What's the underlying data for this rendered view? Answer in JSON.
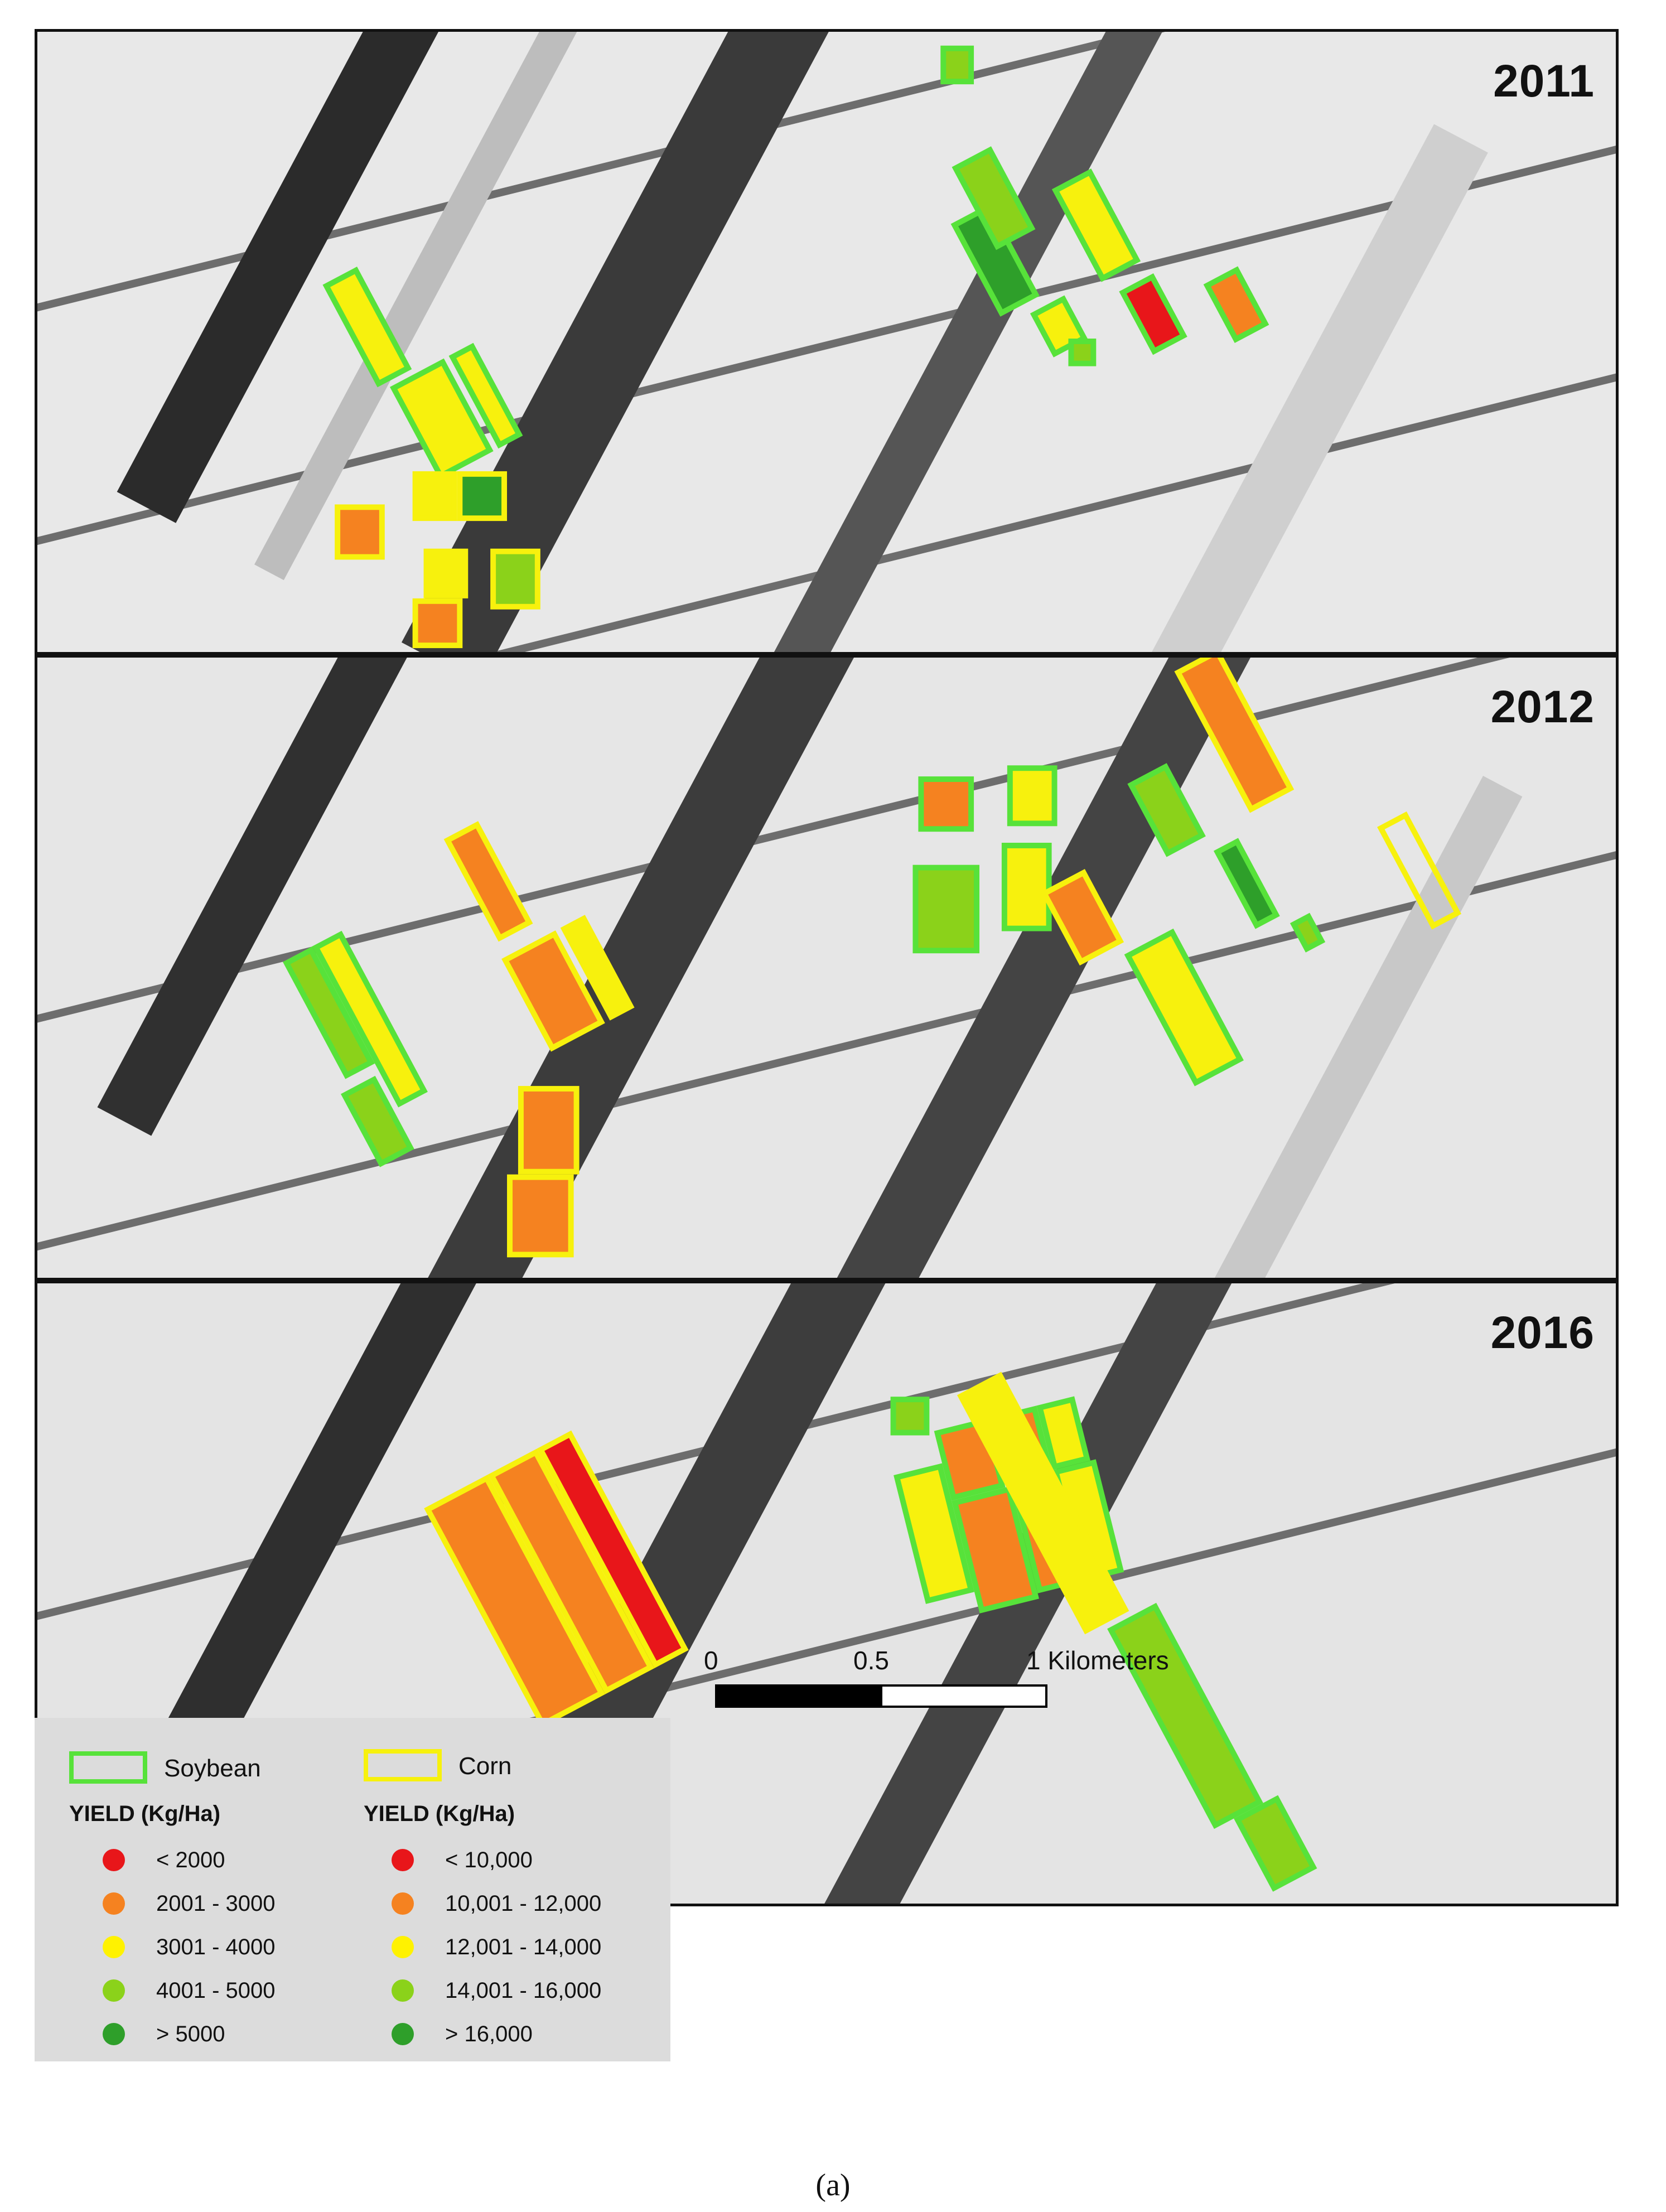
{
  "panels": [
    {
      "year": "2011"
    },
    {
      "year": "2012"
    },
    {
      "year": "2016"
    }
  ],
  "legend": {
    "soybean_label": "Soybean",
    "corn_label": "Corn",
    "soybean_color": "#57e23a",
    "corn_color": "#f7f10d",
    "soybean_yield_label": "YIELD (Kg/Ha)",
    "corn_yield_label": "YIELD (Kg/Ha)",
    "soybean_classes": [
      "< 2000",
      "2001 - 3000",
      "3001 - 4000",
      "4001 - 5000",
      "> 5000"
    ],
    "corn_classes": [
      "< 10,000",
      "10,001 - 12,000",
      "12,001 - 14,000",
      "14,001 - 16,000",
      "> 16,000"
    ],
    "class_colors": [
      "#e8161a",
      "#f58220",
      "#fff200",
      "#8bd21a",
      "#2e9f2a"
    ]
  },
  "scalebar": {
    "tick_0": "0",
    "tick_1": "0.5",
    "tick_2": "1 Kilometers"
  },
  "caption": "(a)"
}
